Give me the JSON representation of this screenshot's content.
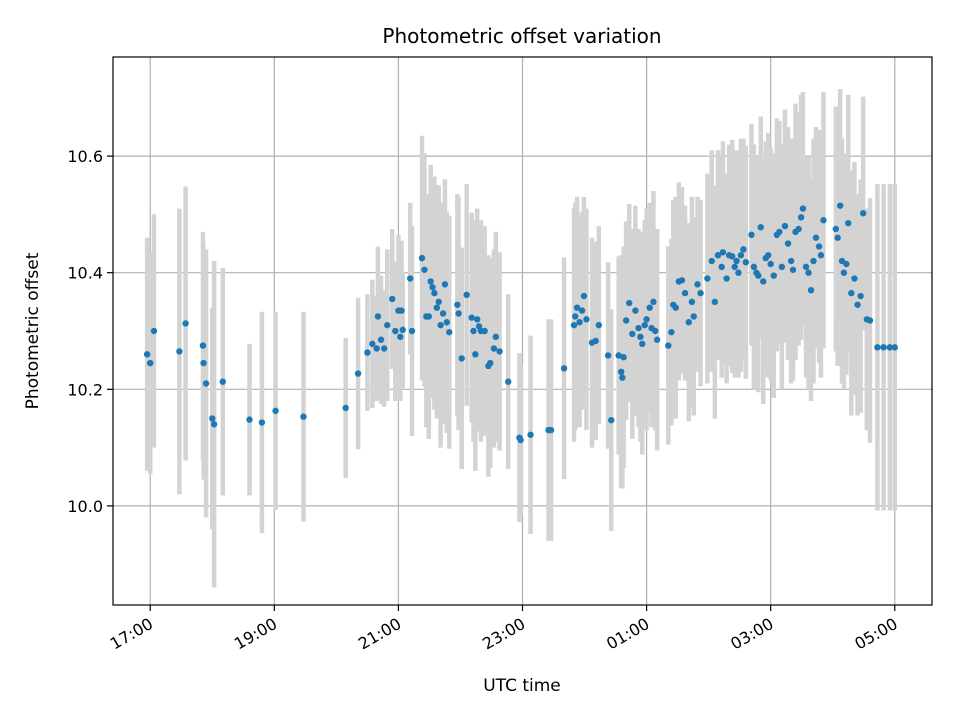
{
  "chart_data": {
    "type": "scatter",
    "title": "Photometric offset variation",
    "xlabel": "UTC time",
    "ylabel": "Photometric offset",
    "grid": true,
    "x_axis_kind": "time",
    "x_start": "17:00",
    "x_end": "05:00",
    "x_range_hours": [
      -0.6,
      12.6
    ],
    "ylim": [
      9.83,
      10.77
    ],
    "x_ticks": [
      {
        "label": "17:00",
        "hour": 0
      },
      {
        "label": "19:00",
        "hour": 2
      },
      {
        "label": "21:00",
        "hour": 4
      },
      {
        "label": "23:00",
        "hour": 6
      },
      {
        "label": "01:00",
        "hour": 8
      },
      {
        "label": "03:00",
        "hour": 10
      },
      {
        "label": "05:00",
        "hour": 12
      }
    ],
    "y_ticks": [
      {
        "label": "10.0",
        "value": 10.0
      },
      {
        "label": "10.2",
        "value": 10.2
      },
      {
        "label": "10.4",
        "value": 10.4
      },
      {
        "label": "10.6",
        "value": 10.6
      }
    ],
    "colors": {
      "points": "#1f77b4",
      "error_bars": "#d3d3d3",
      "grid": "#b0b0b0"
    },
    "series": [
      {
        "points": [
          [
            -0.05,
            10.26,
            0.2
          ],
          [
            0.0,
            10.245,
            0.19
          ],
          [
            0.06,
            10.3,
            0.2
          ],
          [
            0.47,
            10.265,
            0.245
          ],
          [
            0.57,
            10.313,
            0.235
          ],
          [
            0.85,
            10.275,
            0.195
          ],
          [
            0.86,
            10.245,
            0.2
          ],
          [
            0.9,
            10.21,
            0.23
          ],
          [
            1.0,
            10.15,
            0.19
          ],
          [
            1.03,
            10.14,
            0.28
          ],
          [
            1.17,
            10.213,
            0.195
          ],
          [
            1.6,
            10.148,
            0.13
          ],
          [
            1.8,
            10.143,
            0.19
          ],
          [
            2.02,
            10.163,
            0.17
          ],
          [
            2.47,
            10.153,
            0.18
          ],
          [
            3.15,
            10.168,
            0.12
          ],
          [
            3.35,
            10.227,
            0.13
          ],
          [
            3.5,
            10.263,
            0.1
          ],
          [
            3.58,
            10.278,
            0.11
          ],
          [
            3.65,
            10.27,
            0.09
          ],
          [
            3.67,
            10.325,
            0.12
          ],
          [
            3.72,
            10.285,
            0.11
          ],
          [
            3.77,
            10.27,
            0.1
          ],
          [
            3.82,
            10.31,
            0.13
          ],
          [
            3.9,
            10.355,
            0.12
          ],
          [
            3.95,
            10.3,
            0.12
          ],
          [
            4.0,
            10.335,
            0.13
          ],
          [
            4.03,
            10.29,
            0.11
          ],
          [
            4.07,
            10.302,
            0.1
          ],
          [
            4.05,
            10.335,
            0.12
          ],
          [
            4.19,
            10.39,
            0.13
          ],
          [
            4.22,
            10.3,
            0.18
          ],
          [
            4.38,
            10.425,
            0.21
          ],
          [
            4.42,
            10.405,
            0.2
          ],
          [
            4.45,
            10.325,
            0.19
          ],
          [
            4.49,
            10.325,
            0.21
          ],
          [
            4.52,
            10.385,
            0.2
          ],
          [
            4.55,
            10.375,
            0.19
          ],
          [
            4.58,
            10.365,
            0.2
          ],
          [
            4.62,
            10.34,
            0.19
          ],
          [
            4.65,
            10.35,
            0.2
          ],
          [
            4.68,
            10.31,
            0.21
          ],
          [
            4.72,
            10.33,
            0.19
          ],
          [
            4.75,
            10.38,
            0.18
          ],
          [
            4.78,
            10.315,
            0.19
          ],
          [
            4.82,
            10.298,
            0.2
          ],
          [
            4.95,
            10.345,
            0.19
          ],
          [
            4.97,
            10.33,
            0.2
          ],
          [
            5.02,
            10.253,
            0.19
          ],
          [
            5.1,
            10.362,
            0.19
          ],
          [
            5.18,
            10.323,
            0.18
          ],
          [
            5.21,
            10.3,
            0.19
          ],
          [
            5.24,
            10.26,
            0.2
          ],
          [
            5.27,
            10.32,
            0.19
          ],
          [
            5.3,
            10.308,
            0.18
          ],
          [
            5.33,
            10.3,
            0.19
          ],
          [
            5.39,
            10.3,
            0.18
          ],
          [
            5.45,
            10.24,
            0.19
          ],
          [
            5.48,
            10.245,
            0.18
          ],
          [
            5.54,
            10.27,
            0.17
          ],
          [
            5.57,
            10.29,
            0.18
          ],
          [
            5.63,
            10.265,
            0.17
          ],
          [
            5.77,
            10.213,
            0.15
          ],
          [
            5.95,
            10.117,
            0.145
          ],
          [
            5.97,
            10.113,
            0.13
          ],
          [
            6.13,
            10.122,
            0.17
          ],
          [
            6.42,
            10.13,
            0.19
          ],
          [
            6.46,
            10.13,
            0.19
          ],
          [
            6.67,
            10.236,
            0.19
          ],
          [
            6.83,
            10.31,
            0.2
          ],
          [
            6.85,
            10.325,
            0.195
          ],
          [
            6.88,
            10.34,
            0.19
          ],
          [
            6.92,
            10.315,
            0.18
          ],
          [
            6.96,
            10.335,
            0.17
          ],
          [
            6.99,
            10.36,
            0.17
          ],
          [
            7.03,
            10.32,
            0.19
          ],
          [
            7.12,
            10.28,
            0.18
          ],
          [
            7.18,
            10.283,
            0.17
          ],
          [
            7.23,
            10.31,
            0.17
          ],
          [
            7.38,
            10.258,
            0.16
          ],
          [
            7.43,
            10.147,
            0.19
          ],
          [
            7.55,
            10.258,
            0.17
          ],
          [
            7.59,
            10.23,
            0.2
          ],
          [
            7.61,
            10.22,
            0.19
          ],
          [
            7.63,
            10.255,
            0.19
          ],
          [
            7.67,
            10.318,
            0.17
          ],
          [
            7.72,
            10.348,
            0.17
          ],
          [
            7.77,
            10.295,
            0.18
          ],
          [
            7.82,
            10.335,
            0.18
          ],
          [
            7.87,
            10.305,
            0.17
          ],
          [
            7.9,
            10.29,
            0.18
          ],
          [
            7.93,
            10.278,
            0.19
          ],
          [
            7.97,
            10.31,
            0.18
          ],
          [
            8.0,
            10.32,
            0.19
          ],
          [
            8.05,
            10.34,
            0.18
          ],
          [
            8.08,
            10.305,
            0.17
          ],
          [
            8.11,
            10.35,
            0.19
          ],
          [
            8.14,
            10.3,
            0.17
          ],
          [
            8.17,
            10.285,
            0.19
          ],
          [
            8.35,
            10.275,
            0.17
          ],
          [
            8.4,
            10.298,
            0.16
          ],
          [
            8.43,
            10.345,
            0.18
          ],
          [
            8.47,
            10.34,
            0.19
          ],
          [
            8.52,
            10.385,
            0.17
          ],
          [
            8.57,
            10.387,
            0.16
          ],
          [
            8.62,
            10.365,
            0.15
          ],
          [
            8.68,
            10.315,
            0.17
          ],
          [
            8.73,
            10.35,
            0.18
          ],
          [
            8.76,
            10.325,
            0.17
          ],
          [
            8.82,
            10.38,
            0.15
          ],
          [
            8.87,
            10.365,
            0.16
          ],
          [
            8.98,
            10.39,
            0.18
          ],
          [
            9.05,
            10.42,
            0.19
          ],
          [
            9.1,
            10.35,
            0.2
          ],
          [
            9.15,
            10.43,
            0.18
          ],
          [
            9.21,
            10.41,
            0.19
          ],
          [
            9.23,
            10.435,
            0.19
          ],
          [
            9.29,
            10.39,
            0.18
          ],
          [
            9.33,
            10.43,
            0.19
          ],
          [
            9.38,
            10.428,
            0.2
          ],
          [
            9.42,
            10.41,
            0.19
          ],
          [
            9.45,
            10.42,
            0.19
          ],
          [
            9.48,
            10.4,
            0.18
          ],
          [
            9.52,
            10.43,
            0.2
          ],
          [
            9.56,
            10.44,
            0.19
          ],
          [
            9.6,
            10.418,
            0.2
          ],
          [
            9.69,
            10.465,
            0.19
          ],
          [
            9.73,
            10.41,
            0.21
          ],
          [
            9.77,
            10.4,
            0.2
          ],
          [
            9.8,
            10.395,
            0.2
          ],
          [
            9.84,
            10.478,
            0.19
          ],
          [
            9.88,
            10.385,
            0.21
          ],
          [
            9.92,
            10.425,
            0.2
          ],
          [
            9.96,
            10.43,
            0.21
          ],
          [
            10.0,
            10.415,
            0.2
          ],
          [
            10.05,
            10.395,
            0.21
          ],
          [
            10.1,
            10.465,
            0.2
          ],
          [
            10.14,
            10.47,
            0.19
          ],
          [
            10.18,
            10.41,
            0.21
          ],
          [
            10.23,
            10.48,
            0.2
          ],
          [
            10.28,
            10.45,
            0.2
          ],
          [
            10.33,
            10.42,
            0.21
          ],
          [
            10.36,
            10.405,
            0.19
          ],
          [
            10.4,
            10.47,
            0.22
          ],
          [
            10.45,
            10.475,
            0.2
          ],
          [
            10.49,
            10.495,
            0.21
          ],
          [
            10.52,
            10.51,
            0.2
          ],
          [
            10.57,
            10.41,
            0.19
          ],
          [
            10.61,
            10.4,
            0.2
          ],
          [
            10.65,
            10.37,
            0.19
          ],
          [
            10.69,
            10.42,
            0.21
          ],
          [
            10.73,
            10.46,
            0.19
          ],
          [
            10.78,
            10.445,
            0.2
          ],
          [
            10.81,
            10.43,
            0.21
          ],
          [
            10.85,
            10.49,
            0.22
          ],
          [
            11.05,
            10.475,
            0.21
          ],
          [
            11.08,
            10.46,
            0.22
          ],
          [
            11.12,
            10.515,
            0.2
          ],
          [
            11.15,
            10.42,
            0.21
          ],
          [
            11.18,
            10.4,
            0.2
          ],
          [
            11.22,
            10.415,
            0.19
          ],
          [
            11.25,
            10.485,
            0.22
          ],
          [
            11.3,
            10.365,
            0.21
          ],
          [
            11.35,
            10.39,
            0.2
          ],
          [
            11.4,
            10.345,
            0.19
          ],
          [
            11.45,
            10.36,
            0.2
          ],
          [
            11.49,
            10.502,
            0.2
          ],
          [
            11.55,
            10.32,
            0.19
          ],
          [
            11.6,
            10.318,
            0.21
          ],
          [
            11.72,
            10.272,
            0.28
          ],
          [
            11.82,
            10.272,
            0.28
          ],
          [
            11.92,
            10.272,
            0.28
          ],
          [
            12.0,
            10.272,
            0.28
          ]
        ]
      }
    ]
  }
}
